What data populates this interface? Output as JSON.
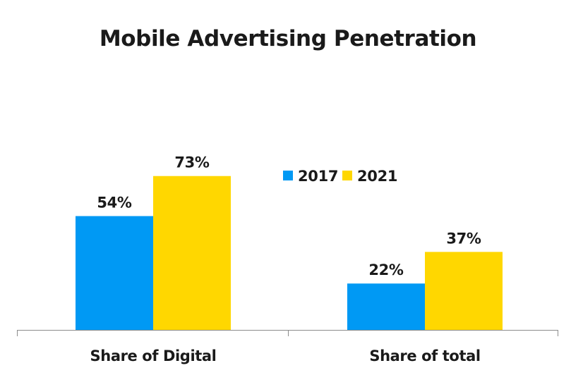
{
  "chart_data": {
    "type": "bar",
    "title": "Mobile Advertising Penetration",
    "xlabel": "",
    "ylabel": "",
    "categories": [
      "Share of Digital",
      "Share of total"
    ],
    "series": [
      {
        "name": "2017",
        "color": "#0099f4",
        "values": [
          54,
          22
        ],
        "labels": [
          "54%",
          "22%"
        ]
      },
      {
        "name": "2021",
        "color": "#ffd700",
        "values": [
          73,
          37
        ],
        "labels": [
          "73%",
          "37%"
        ]
      }
    ],
    "ylim": [
      0,
      100
    ],
    "grid": false,
    "legend_position": "center-right"
  }
}
